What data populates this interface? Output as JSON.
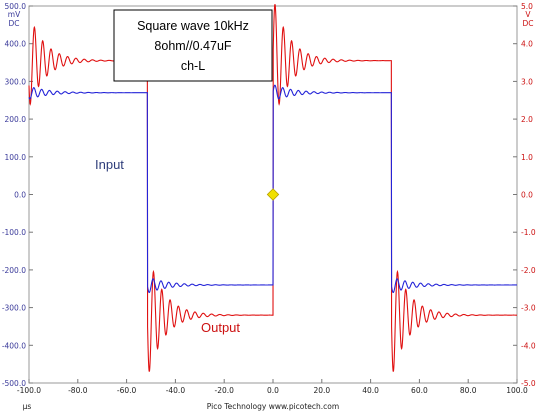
{
  "chart_data": {
    "type": "line",
    "title_lines": [
      "Square wave 10kHz",
      "8ohm//0.47uF",
      "ch-L"
    ],
    "xlabel": "µs",
    "footer": "Pico Technology  www.picotech.com",
    "xlim": [
      -100,
      100
    ],
    "x_ticks": [
      "-100.0",
      "-80.0",
      "-60.0",
      "-40.0",
      "-20.0",
      "0.0",
      "20.0",
      "40.0",
      "60.0",
      "80.0",
      "100.0"
    ],
    "y_left": {
      "unit_top": "mV",
      "unit_bottom": "DC",
      "range": [
        -500,
        500
      ],
      "ticks": [
        "500.0",
        "400.0",
        "300.0",
        "200.0",
        "100.0",
        "0.0",
        "-100.0",
        "-200.0",
        "-300.0",
        "-400.0",
        "-500.0"
      ],
      "color": "#3a3a9a"
    },
    "y_right": {
      "unit_top": "V",
      "unit_bottom": "DC",
      "range": [
        -5,
        5
      ],
      "ticks": [
        "5.0",
        "4.0",
        "3.0",
        "2.0",
        "1.0",
        "0.0",
        "-1.0",
        "-2.0",
        "-3.0",
        "-4.0",
        "-5.0"
      ],
      "color": "#cc1111"
    },
    "grid": false,
    "series": [
      {
        "name": "Input",
        "axis": "left",
        "color": "#2424d8",
        "high": 270,
        "low": -240,
        "edges_us": [
          -51.5,
          0,
          48.5
        ],
        "ring_amplitude": 22,
        "ring_period_us": 3.2,
        "ring_decay_us": 8
      },
      {
        "name": "Output",
        "axis": "right",
        "color": "#e01010",
        "high": 3.55,
        "low": -3.2,
        "edges_us": [
          -51.5,
          0,
          48.5
        ],
        "ring_amplitude": 1.7,
        "ring_period_us": 3.4,
        "ring_decay_us": 6.5
      }
    ],
    "labels": {
      "input": "Input",
      "output": "Output"
    },
    "trigger_marker": {
      "x": 0.0,
      "y": 0.0,
      "color": "#f0e000"
    }
  }
}
